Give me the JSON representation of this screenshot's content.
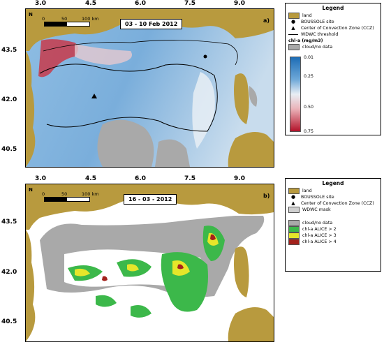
{
  "panel_a": {
    "date": "03 - 10 Feb 2012",
    "label": "a)",
    "lon_ticks": [
      "3.0",
      "4.5",
      "6.0",
      "7.5",
      "9.0"
    ],
    "lat_ticks": [
      "43.5",
      "42.0",
      "40.5"
    ],
    "scale": [
      "0",
      "50",
      "100 km"
    ],
    "north": "N",
    "legend": {
      "title": "Legend",
      "items": [
        "land",
        "BOUSSOLE site",
        "Center of Convection Zone (CCZ)",
        "WDWC threshold"
      ],
      "colorbar_title": "chl-a (mg/m3)",
      "nodata": "cloud/no data",
      "colorbar_ticks": [
        "0.01",
        "0.25",
        "0.50",
        "0.75"
      ]
    }
  },
  "panel_b": {
    "date": "16 - 03 - 2012",
    "label": "b)",
    "lon_ticks": [
      "3.0",
      "4.5",
      "6.0",
      "7.5",
      "9.0"
    ],
    "lat_ticks": [
      "43.5",
      "42.0",
      "40.5"
    ],
    "scale": [
      "0",
      "50",
      "100 km"
    ],
    "north": "N",
    "legend": {
      "title": "Legend",
      "items": [
        "land",
        "BOUSSOLE site",
        "Center of Convection Zone (CCZ)",
        "WDWC mask"
      ],
      "classes": [
        "cloud/no data",
        "chl-a ALICE > 2",
        "chl-a ALICE > 3",
        "chl-a ALICE > 4"
      ]
    }
  },
  "colors": {
    "land": "#b89a3e",
    "cloud": "#a9a9a9",
    "sea_low": "#6ea8d8",
    "sea_mid": "#dfe7ef",
    "sea_high": "#b3122a",
    "alice2": "#3cb84a",
    "alice3": "#e6e62a",
    "alice4": "#a3221c"
  }
}
